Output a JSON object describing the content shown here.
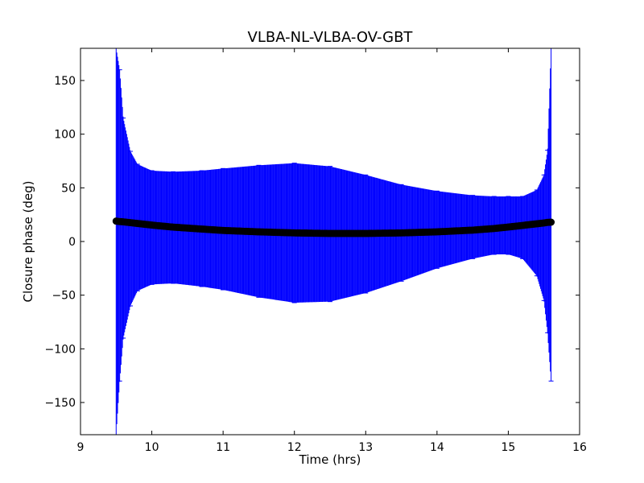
{
  "chart_data": {
    "type": "scatter",
    "title": "VLBA-NL-VLBA-OV-GBT",
    "xlabel": "Time (hrs)",
    "ylabel": "Closure phase (deg)",
    "xlim": [
      9,
      16
    ],
    "ylim": [
      -180,
      180
    ],
    "xticks": [
      9,
      10,
      11,
      12,
      13,
      14,
      15,
      16
    ],
    "yticks": [
      -150,
      -100,
      -50,
      0,
      50,
      100,
      150
    ],
    "xtick_labels": [
      "9",
      "10",
      "11",
      "12",
      "13",
      "14",
      "15",
      "16"
    ],
    "ytick_labels": [
      "−150",
      "−100",
      "−50",
      "0",
      "50",
      "100",
      "150"
    ],
    "grid": false,
    "legend": "none",
    "colors": {
      "errorbar": "#0000ff",
      "points": "#000000"
    },
    "series": [
      {
        "x": [
          9.5,
          9.55,
          9.6,
          9.7,
          9.8,
          10.0,
          10.3,
          10.7,
          11.0,
          11.5,
          12.0,
          12.5,
          13.0,
          13.5,
          14.0,
          14.5,
          14.8,
          15.0,
          15.2,
          15.4,
          15.5,
          15.55,
          15.6
        ],
        "y": [
          19,
          18.6,
          18.3,
          17.6,
          16.8,
          15.3,
          13.4,
          11.6,
          10.3,
          9.0,
          8.0,
          7.5,
          7.5,
          8.0,
          9.0,
          10.6,
          12.1,
          13.5,
          15.0,
          16.5,
          17.3,
          17.8,
          18.0
        ],
        "ylow": [
          -180,
          -130,
          -90,
          -60,
          -46,
          -40,
          -39,
          -42,
          -45,
          -52,
          -57,
          -56,
          -48,
          -37,
          -25,
          -16,
          -12,
          -12,
          -16,
          -32,
          -55,
          -85,
          -130
        ],
        "yhigh": [
          180,
          160,
          115,
          84,
          72,
          66,
          65,
          66,
          68,
          71,
          73,
          70,
          62,
          53,
          47,
          43,
          42,
          42,
          42,
          48,
          62,
          85,
          180
        ]
      }
    ]
  }
}
